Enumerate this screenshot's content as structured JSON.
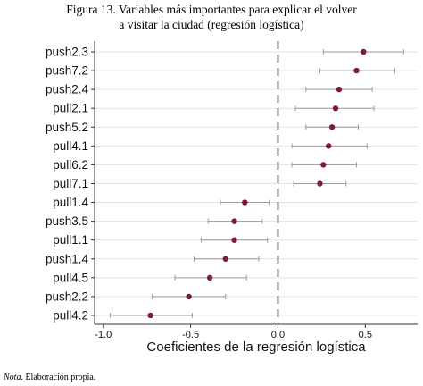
{
  "figure": {
    "title_line1": "Figura 13. Variables más importantes para explicar el volver",
    "title_line2": "a visitar la ciudad (regresión logística)",
    "note_label": "Nota",
    "note_text": ". Elaboración propia."
  },
  "chart_data": {
    "type": "scatter",
    "subtype": "coefficient-plot-with-error-bars",
    "xlabel": "Coeficientes de la regresión logística",
    "ylabel": "",
    "xlim": [
      -1.05,
      0.8
    ],
    "xticks": [
      -1.0,
      -0.5,
      0.0,
      0.5
    ],
    "xtick_labels": [
      "-1.0",
      "-0.5",
      "0.0",
      "0.5"
    ],
    "reference_line": 0.0,
    "grid": "horizontal",
    "colors": {
      "point": "#7b1b3f",
      "errorbar": "#9a9a9a",
      "grid": "#e3e3e3",
      "refline": "#777777"
    },
    "categories": [
      "push2.3",
      "push7.2",
      "push2.4",
      "pull2.1",
      "push5.2",
      "pull4.1",
      "pull6.2",
      "pull7.1",
      "pull1.4",
      "push3.5",
      "pull1.1",
      "push1.4",
      "pull4.5",
      "push2.2",
      "pull4.2"
    ],
    "estimates": [
      0.49,
      0.45,
      0.35,
      0.33,
      0.31,
      0.29,
      0.26,
      0.24,
      -0.19,
      -0.25,
      -0.25,
      -0.3,
      -0.39,
      -0.51,
      -0.73
    ],
    "lower": [
      0.26,
      0.24,
      0.16,
      0.1,
      0.16,
      0.08,
      0.08,
      0.09,
      -0.33,
      -0.4,
      -0.44,
      -0.48,
      -0.59,
      -0.72,
      -0.96
    ],
    "upper": [
      0.72,
      0.67,
      0.54,
      0.55,
      0.46,
      0.51,
      0.45,
      0.39,
      -0.05,
      -0.09,
      -0.06,
      -0.11,
      -0.18,
      -0.3,
      -0.49
    ]
  }
}
